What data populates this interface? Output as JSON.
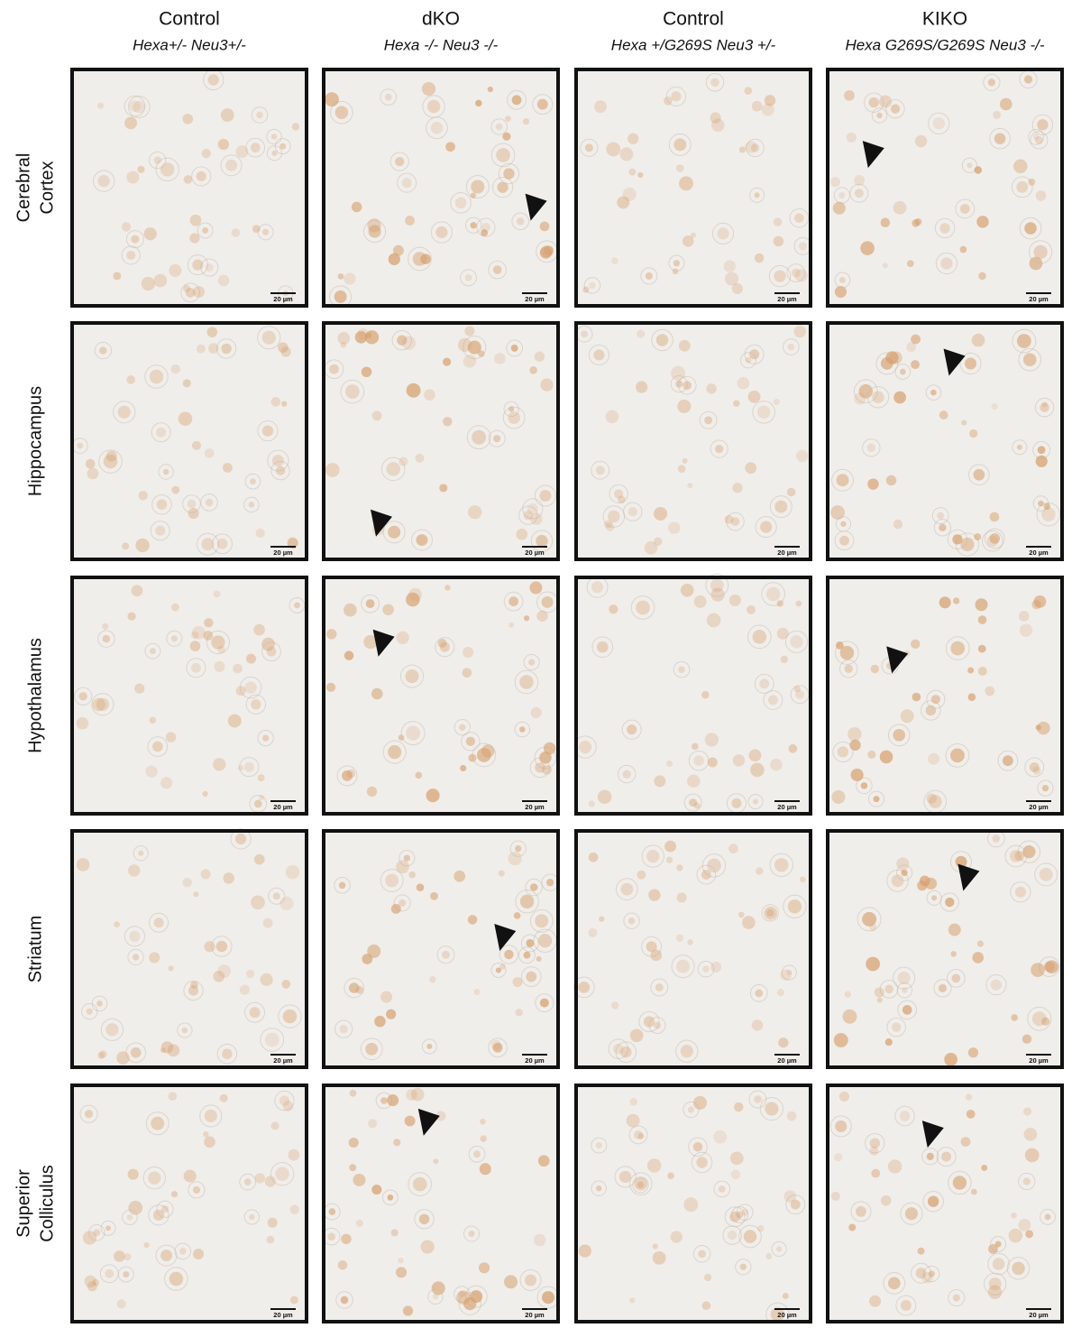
{
  "columns": [
    {
      "title": "Control",
      "genotype": "Hexa+/- Neu3+/-"
    },
    {
      "title": "dKO",
      "genotype": "Hexa -/- Neu3 -/-"
    },
    {
      "title": "Control",
      "genotype": "Hexa +/G269S Neu3 +/-"
    },
    {
      "title": "KIKO",
      "genotype": "Hexa G269S/G269S Neu3 -/-"
    }
  ],
  "rows": [
    {
      "label": [
        "Cerebral",
        "Cortex"
      ],
      "scale_bars": [
        "20 µm",
        "20 µm",
        "20 µm",
        "20 µm"
      ]
    },
    {
      "label": [
        "Hippocampus"
      ],
      "scale_bars": [
        "20 µm",
        "20 µm",
        "20 µm",
        "20 µm"
      ]
    },
    {
      "label": [
        "Hypothalamus"
      ],
      "scale_bars": [
        "20 µm",
        "20 µm",
        "20 µm",
        "20 µm"
      ]
    },
    {
      "label": [
        "Striatum"
      ],
      "scale_bars": [
        "20 µm",
        "20 µm",
        "20 µm",
        "20 µm"
      ]
    },
    {
      "label": [
        "Superior",
        "Colliculus"
      ],
      "scale_bars": [
        "20 µm",
        "20 µm",
        "20 µm",
        "20 µm"
      ]
    }
  ]
}
